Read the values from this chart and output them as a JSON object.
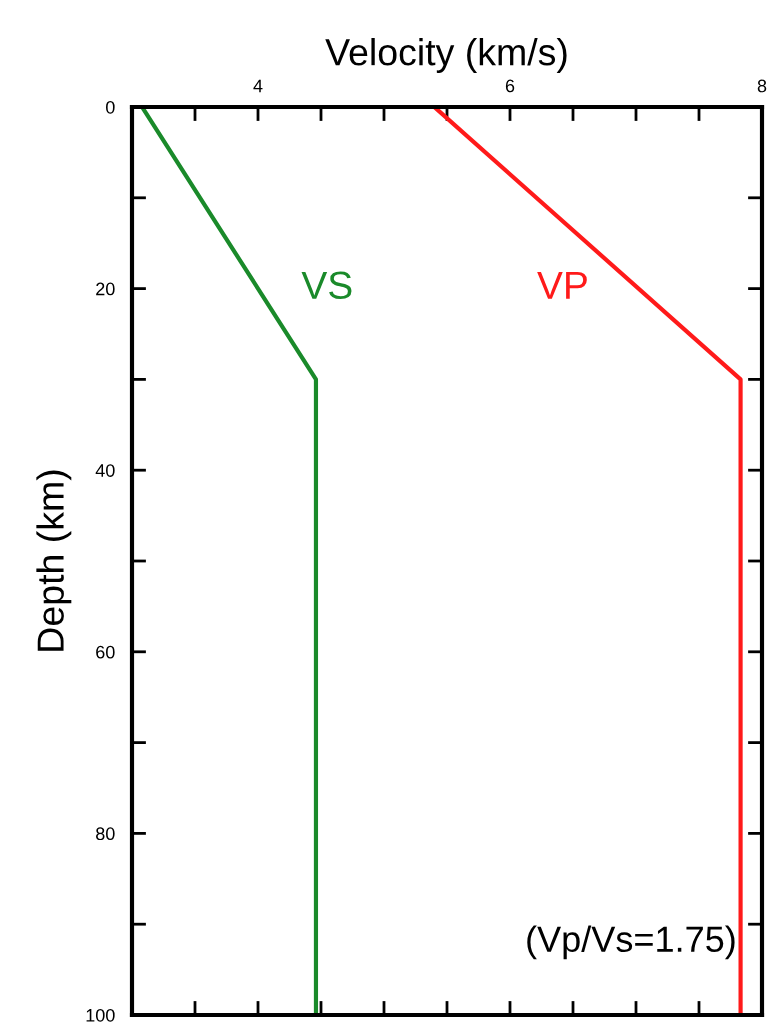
{
  "chart_data": {
    "type": "line",
    "xlabel": "Velocity (km/s)",
    "ylabel": "Depth (km)",
    "xlim": [
      3,
      8
    ],
    "ylim": [
      100,
      0
    ],
    "xticks": [
      {
        "value": 3.5,
        "label": null
      },
      4,
      {
        "value": 4.5,
        "label": null
      },
      {
        "value": 5,
        "label": null
      },
      {
        "value": 5.5,
        "label": null
      },
      6,
      {
        "value": 6.5,
        "label": null
      },
      {
        "value": 7,
        "label": null
      },
      {
        "value": 7.5,
        "label": null
      },
      8
    ],
    "yticks": [
      0,
      {
        "value": 10,
        "label": null
      },
      20,
      {
        "value": 30,
        "label": null
      },
      40,
      {
        "value": 50,
        "label": null
      },
      60,
      {
        "value": 70,
        "label": null
      },
      80,
      {
        "value": 90,
        "label": null
      },
      100
    ],
    "series": [
      {
        "name": "VS",
        "color": "#1a8a2a",
        "x": [
          3.08,
          4.46,
          4.46
        ],
        "values": [
          0,
          30,
          100
        ]
      },
      {
        "name": "VP",
        "color": "#ff1a1a",
        "x": [
          5.4,
          7.83,
          7.83
        ],
        "values": [
          0,
          30,
          100
        ]
      }
    ],
    "annotations": [
      "(Vp/Vs=1.75)"
    ],
    "grid": false,
    "legend": false,
    "marker": "none",
    "line_style": "solid"
  }
}
